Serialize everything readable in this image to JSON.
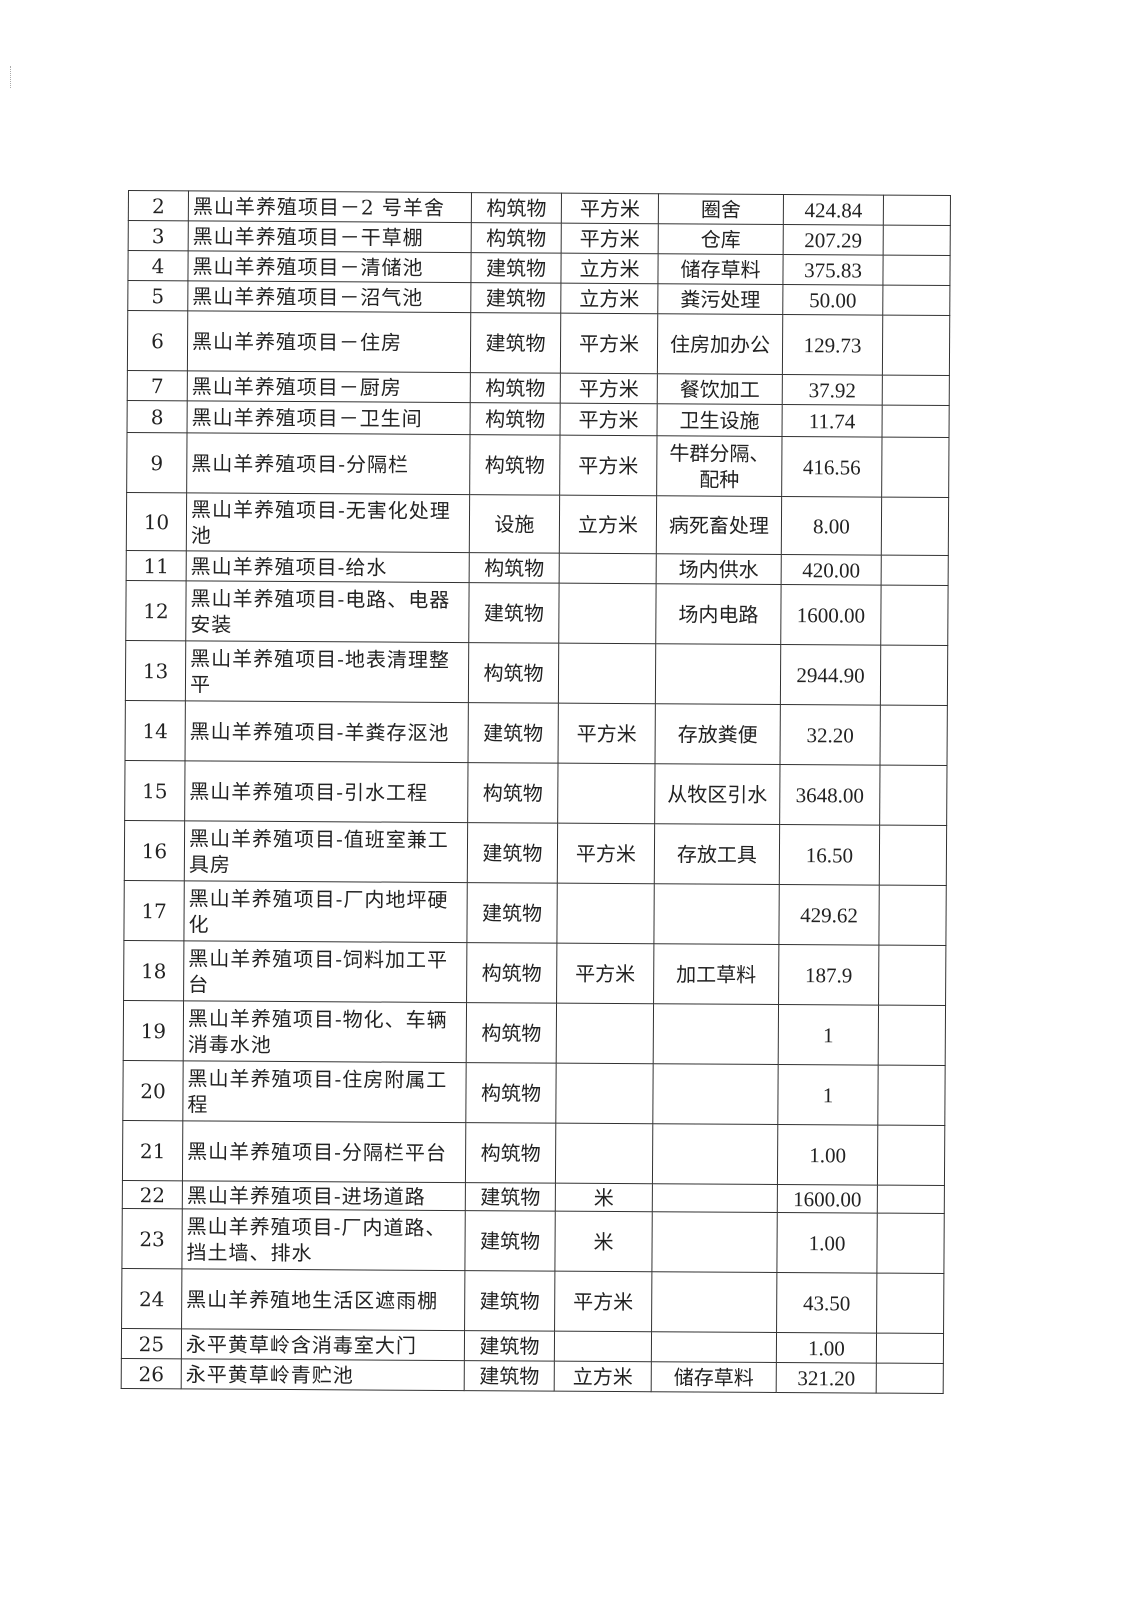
{
  "rows": [
    {
      "no": "2",
      "name": "黑山羊养殖项目－2 号羊舍",
      "type": "构筑物",
      "unit": "平方米",
      "use": "圈舍",
      "qty": "424.84"
    },
    {
      "no": "3",
      "name": "黑山羊养殖项目－干草棚",
      "type": "构筑物",
      "unit": "平方米",
      "use": "仓库",
      "qty": "207.29"
    },
    {
      "no": "4",
      "name": "黑山羊养殖项目－清储池",
      "type": "建筑物",
      "unit": "立方米",
      "use": "储存草料",
      "qty": "375.83"
    },
    {
      "no": "5",
      "name": "黑山羊养殖项目－沼气池",
      "type": "建筑物",
      "unit": "立方米",
      "use": "粪污处理",
      "qty": "50.00"
    },
    {
      "no": "6",
      "name": "黑山羊养殖项目－住房",
      "type": "建筑物",
      "unit": "平方米",
      "use": "住房加办公",
      "qty": "129.73"
    },
    {
      "no": "7",
      "name": "黑山羊养殖项目－厨房",
      "type": "构筑物",
      "unit": "平方米",
      "use": "餐饮加工",
      "qty": "37.92"
    },
    {
      "no": "8",
      "name": "黑山羊养殖项目－卫生间",
      "type": "构筑物",
      "unit": "平方米",
      "use": "卫生设施",
      "qty": "11.74"
    },
    {
      "no": "9",
      "name": "黑山羊养殖项目-分隔栏",
      "type": "构筑物",
      "unit": "平方米",
      "use": "牛群分隔、配种",
      "qty": "416.56"
    },
    {
      "no": "10",
      "name": "黑山羊养殖项目-无害化处理池",
      "type": "设施",
      "unit": "立方米",
      "use": "病死畜处理",
      "qty": "8.00"
    },
    {
      "no": "11",
      "name": "黑山羊养殖项目-给水",
      "type": "构筑物",
      "unit": "",
      "use": "场内供水",
      "qty": "420.00"
    },
    {
      "no": "12",
      "name": "黑山羊养殖项目-电路、电器安装",
      "type": "建筑物",
      "unit": "",
      "use": "场内电路",
      "qty": "1600.00"
    },
    {
      "no": "13",
      "name": "黑山羊养殖项目-地表清理整平",
      "type": "构筑物",
      "unit": "",
      "use": "",
      "qty": "2944.90"
    },
    {
      "no": "14",
      "name": "黑山羊养殖项目-羊粪存沤池",
      "type": "建筑物",
      "unit": "平方米",
      "use": "存放粪便",
      "qty": "32.20"
    },
    {
      "no": "15",
      "name": "黑山羊养殖项目-引水工程",
      "type": "构筑物",
      "unit": "",
      "use": "从牧区引水",
      "qty": "3648.00"
    },
    {
      "no": "16",
      "name": "黑山羊养殖项目-值班室兼工具房",
      "type": "建筑物",
      "unit": "平方米",
      "use": "存放工具",
      "qty": "16.50"
    },
    {
      "no": "17",
      "name": "黑山羊养殖项目-厂内地坪硬化",
      "type": "建筑物",
      "unit": "",
      "use": "",
      "qty": "429.62"
    },
    {
      "no": "18",
      "name": "黑山羊养殖项目-饲料加工平台",
      "type": "构筑物",
      "unit": "平方米",
      "use": "加工草料",
      "qty": "187.9"
    },
    {
      "no": "19",
      "name": "黑山羊养殖项目-物化、车辆消毒水池",
      "type": "构筑物",
      "unit": "",
      "use": "",
      "qty": "1"
    },
    {
      "no": "20",
      "name": "黑山羊养殖项目-住房附属工程",
      "type": "构筑物",
      "unit": "",
      "use": "",
      "qty": "1"
    },
    {
      "no": "21",
      "name": "黑山羊养殖项目-分隔栏平台",
      "type": "构筑物",
      "unit": "",
      "use": "",
      "qty": "1.00"
    },
    {
      "no": "22",
      "name": "黑山羊养殖项目-进场道路",
      "type": "建筑物",
      "unit": "米",
      "use": "",
      "qty": "1600.00"
    },
    {
      "no": "23",
      "name": "黑山羊养殖项目-厂内道路、挡土墙、排水",
      "type": "建筑物",
      "unit": "米",
      "use": "",
      "qty": "1.00"
    },
    {
      "no": "24",
      "name": "黑山羊养殖地生活区遮雨棚",
      "type": "建筑物",
      "unit": "平方米",
      "use": "",
      "qty": "43.50"
    },
    {
      "no": "25",
      "name": "永平黄草岭含消毒室大门",
      "type": "建筑物",
      "unit": "",
      "use": "",
      "qty": "1.00"
    },
    {
      "no": "26",
      "name": "永平黄草岭青贮池",
      "type": "建筑物",
      "unit": "立方米",
      "use": "储存草料",
      "qty": "321.20"
    }
  ]
}
